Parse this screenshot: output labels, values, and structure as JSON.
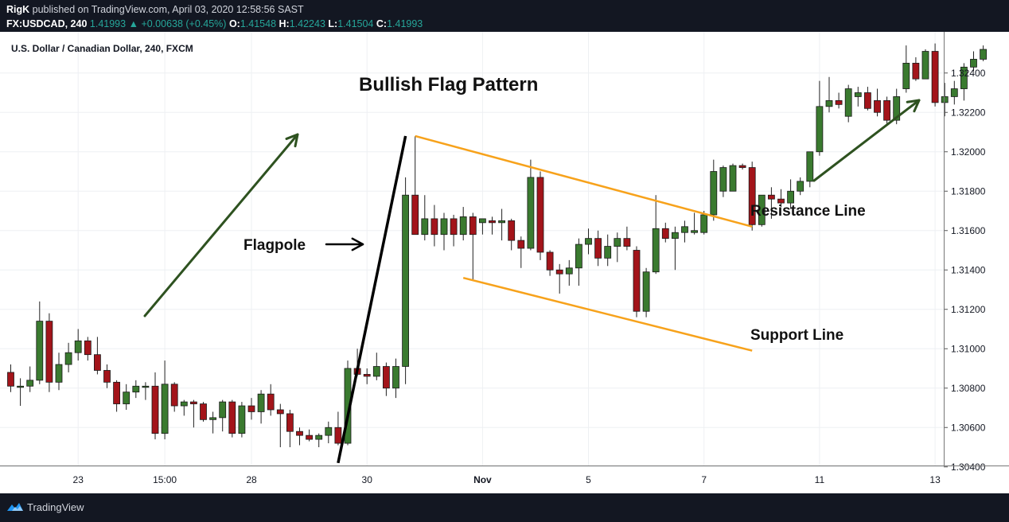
{
  "header": {
    "publisher": "RigK",
    "published_text": "published on TradingView.com, April 03, 2020 12:58:56 SAST",
    "symbol": "FX:USDCAD, 240",
    "last": "1.41993",
    "change": "+0.00638 (+0.45%)",
    "open_label": "O:",
    "open": "1.41548",
    "high_label": "H:",
    "high": "1.42243",
    "low_label": "L:",
    "low": "1.41504",
    "close_label": "C:",
    "close": "1.41993"
  },
  "footer": {
    "brand": "TradingView"
  },
  "chart_data": {
    "type": "candlestick",
    "symbol_label": "U.S. Dollar / Canadian Dollar, 240, FXCM",
    "ylim": [
      1.303,
      1.325
    ],
    "y_ticks": [
      "1.32400",
      "1.32200",
      "1.32000",
      "1.31800",
      "1.31600",
      "1.31400",
      "1.31200",
      "1.31000",
      "1.30800",
      "1.30600",
      "1.30400"
    ],
    "y_tick_values": [
      1.324,
      1.322,
      1.32,
      1.318,
      1.316,
      1.314,
      1.312,
      1.31,
      1.308,
      1.306,
      1.304
    ],
    "x_ticks": [
      "23",
      "15:00",
      "28",
      "30",
      "Nov",
      "5",
      "7",
      "11",
      "13"
    ],
    "x_tick_index": [
      7,
      16,
      25,
      37,
      49,
      60,
      72,
      84,
      96
    ],
    "grid": true,
    "colors": {
      "up": "#3a7a2f",
      "down": "#a3141a",
      "trend_arrow": "#2e5220",
      "flag_lines": "#f7a21b",
      "flagpole": "#000000"
    },
    "candles": [
      {
        "o": 1.3088,
        "h": 1.3092,
        "l": 1.3078,
        "c": 1.3081
      },
      {
        "o": 1.3081,
        "h": 1.3085,
        "l": 1.3071,
        "c": 1.3081
      },
      {
        "o": 1.3081,
        "h": 1.3091,
        "l": 1.3078,
        "c": 1.3084
      },
      {
        "o": 1.3084,
        "h": 1.3124,
        "l": 1.3082,
        "c": 1.3114
      },
      {
        "o": 1.3114,
        "h": 1.3118,
        "l": 1.3078,
        "c": 1.3083
      },
      {
        "o": 1.3083,
        "h": 1.3098,
        "l": 1.3079,
        "c": 1.3092
      },
      {
        "o": 1.3092,
        "h": 1.3103,
        "l": 1.3088,
        "c": 1.3098
      },
      {
        "o": 1.3098,
        "h": 1.311,
        "l": 1.3094,
        "c": 1.3104
      },
      {
        "o": 1.3104,
        "h": 1.3106,
        "l": 1.3094,
        "c": 1.3097
      },
      {
        "o": 1.3097,
        "h": 1.3106,
        "l": 1.3087,
        "c": 1.3089
      },
      {
        "o": 1.3089,
        "h": 1.3092,
        "l": 1.308,
        "c": 1.3083
      },
      {
        "o": 1.3083,
        "h": 1.3084,
        "l": 1.3068,
        "c": 1.3072
      },
      {
        "o": 1.3072,
        "h": 1.3082,
        "l": 1.3069,
        "c": 1.3078
      },
      {
        "o": 1.3078,
        "h": 1.3084,
        "l": 1.3075,
        "c": 1.3081
      },
      {
        "o": 1.3081,
        "h": 1.3083,
        "l": 1.3074,
        "c": 1.3081
      },
      {
        "o": 1.3081,
        "h": 1.3088,
        "l": 1.3054,
        "c": 1.3057
      },
      {
        "o": 1.3057,
        "h": 1.3094,
        "l": 1.3054,
        "c": 1.3082
      },
      {
        "o": 1.3082,
        "h": 1.3083,
        "l": 1.3068,
        "c": 1.3071
      },
      {
        "o": 1.3071,
        "h": 1.3074,
        "l": 1.3066,
        "c": 1.3073
      },
      {
        "o": 1.3073,
        "h": 1.3074,
        "l": 1.306,
        "c": 1.3072
      },
      {
        "o": 1.3072,
        "h": 1.3073,
        "l": 1.3063,
        "c": 1.3064
      },
      {
        "o": 1.3064,
        "h": 1.3068,
        "l": 1.3057,
        "c": 1.3065
      },
      {
        "o": 1.3065,
        "h": 1.3074,
        "l": 1.3058,
        "c": 1.3073
      },
      {
        "o": 1.3073,
        "h": 1.3074,
        "l": 1.3055,
        "c": 1.3057
      },
      {
        "o": 1.3057,
        "h": 1.3073,
        "l": 1.3055,
        "c": 1.3071
      },
      {
        "o": 1.3071,
        "h": 1.3075,
        "l": 1.3064,
        "c": 1.3068
      },
      {
        "o": 1.3068,
        "h": 1.3079,
        "l": 1.3062,
        "c": 1.3077
      },
      {
        "o": 1.3077,
        "h": 1.3082,
        "l": 1.3066,
        "c": 1.3069
      },
      {
        "o": 1.3069,
        "h": 1.3072,
        "l": 1.305,
        "c": 1.3067
      },
      {
        "o": 1.3067,
        "h": 1.3069,
        "l": 1.305,
        "c": 1.3058
      },
      {
        "o": 1.3058,
        "h": 1.306,
        "l": 1.3051,
        "c": 1.3056
      },
      {
        "o": 1.3056,
        "h": 1.3059,
        "l": 1.3053,
        "c": 1.3054
      },
      {
        "o": 1.3054,
        "h": 1.3057,
        "l": 1.305,
        "c": 1.3056
      },
      {
        "o": 1.3056,
        "h": 1.3063,
        "l": 1.3052,
        "c": 1.306
      },
      {
        "o": 1.306,
        "h": 1.3068,
        "l": 1.3051,
        "c": 1.3052
      },
      {
        "o": 1.3052,
        "h": 1.3094,
        "l": 1.3051,
        "c": 1.309
      },
      {
        "o": 1.309,
        "h": 1.31,
        "l": 1.3086,
        "c": 1.3087
      },
      {
        "o": 1.3087,
        "h": 1.309,
        "l": 1.3082,
        "c": 1.3086
      },
      {
        "o": 1.3086,
        "h": 1.3098,
        "l": 1.3084,
        "c": 1.3091
      },
      {
        "o": 1.3091,
        "h": 1.3093,
        "l": 1.3076,
        "c": 1.308
      },
      {
        "o": 1.308,
        "h": 1.3095,
        "l": 1.3075,
        "c": 1.3091
      },
      {
        "o": 1.3091,
        "h": 1.3187,
        "l": 1.3082,
        "c": 1.3178
      },
      {
        "o": 1.3178,
        "h": 1.3208,
        "l": 1.3158,
        "c": 1.3158
      },
      {
        "o": 1.3158,
        "h": 1.3178,
        "l": 1.3155,
        "c": 1.3166
      },
      {
        "o": 1.3166,
        "h": 1.3173,
        "l": 1.3152,
        "c": 1.3158
      },
      {
        "o": 1.3158,
        "h": 1.3169,
        "l": 1.315,
        "c": 1.3166
      },
      {
        "o": 1.3166,
        "h": 1.3168,
        "l": 1.3152,
        "c": 1.3158
      },
      {
        "o": 1.3158,
        "h": 1.3172,
        "l": 1.3155,
        "c": 1.3167
      },
      {
        "o": 1.3167,
        "h": 1.3169,
        "l": 1.3135,
        "c": 1.3158
      },
      {
        "o": 1.3164,
        "h": 1.3166,
        "l": 1.3158,
        "c": 1.3166
      },
      {
        "o": 1.3165,
        "h": 1.3167,
        "l": 1.3158,
        "c": 1.3164
      },
      {
        "o": 1.3164,
        "h": 1.3171,
        "l": 1.3155,
        "c": 1.3165
      },
      {
        "o": 1.3165,
        "h": 1.3166,
        "l": 1.315,
        "c": 1.3155
      },
      {
        "o": 1.3155,
        "h": 1.3157,
        "l": 1.3141,
        "c": 1.3151
      },
      {
        "o": 1.3151,
        "h": 1.3196,
        "l": 1.315,
        "c": 1.3187
      },
      {
        "o": 1.3187,
        "h": 1.319,
        "l": 1.3145,
        "c": 1.3149
      },
      {
        "o": 1.3149,
        "h": 1.315,
        "l": 1.3137,
        "c": 1.314
      },
      {
        "o": 1.314,
        "h": 1.3143,
        "l": 1.3128,
        "c": 1.3138
      },
      {
        "o": 1.3138,
        "h": 1.3145,
        "l": 1.3132,
        "c": 1.3141
      },
      {
        "o": 1.3141,
        "h": 1.3156,
        "l": 1.3132,
        "c": 1.3153
      },
      {
        "o": 1.3153,
        "h": 1.3161,
        "l": 1.3148,
        "c": 1.3156
      },
      {
        "o": 1.3156,
        "h": 1.316,
        "l": 1.3142,
        "c": 1.3146
      },
      {
        "o": 1.3146,
        "h": 1.3158,
        "l": 1.3142,
        "c": 1.3152
      },
      {
        "o": 1.3152,
        "h": 1.3159,
        "l": 1.3144,
        "c": 1.3156
      },
      {
        "o": 1.3156,
        "h": 1.3162,
        "l": 1.315,
        "c": 1.3152
      },
      {
        "o": 1.315,
        "h": 1.3152,
        "l": 1.3116,
        "c": 1.3119
      },
      {
        "o": 1.3119,
        "h": 1.3141,
        "l": 1.3116,
        "c": 1.3139
      },
      {
        "o": 1.3139,
        "h": 1.3178,
        "l": 1.3138,
        "c": 1.3161
      },
      {
        "o": 1.3161,
        "h": 1.3164,
        "l": 1.3154,
        "c": 1.3156
      },
      {
        "o": 1.3156,
        "h": 1.3162,
        "l": 1.314,
        "c": 1.3159
      },
      {
        "o": 1.3159,
        "h": 1.3165,
        "l": 1.3154,
        "c": 1.3162
      },
      {
        "o": 1.3159,
        "h": 1.3169,
        "l": 1.3158,
        "c": 1.316
      },
      {
        "o": 1.3159,
        "h": 1.317,
        "l": 1.3158,
        "c": 1.3168
      },
      {
        "o": 1.3168,
        "h": 1.3196,
        "l": 1.3165,
        "c": 1.319
      },
      {
        "o": 1.318,
        "h": 1.3193,
        "l": 1.3177,
        "c": 1.3192
      },
      {
        "o": 1.318,
        "h": 1.3194,
        "l": 1.318,
        "c": 1.3193
      },
      {
        "o": 1.3193,
        "h": 1.3194,
        "l": 1.3191,
        "c": 1.3192
      },
      {
        "o": 1.3192,
        "h": 1.3195,
        "l": 1.316,
        "c": 1.3163
      },
      {
        "o": 1.3163,
        "h": 1.3178,
        "l": 1.3162,
        "c": 1.3178
      },
      {
        "o": 1.3178,
        "h": 1.3182,
        "l": 1.3166,
        "c": 1.3176
      },
      {
        "o": 1.3176,
        "h": 1.3181,
        "l": 1.3172,
        "c": 1.3174
      },
      {
        "o": 1.3174,
        "h": 1.3186,
        "l": 1.3171,
        "c": 1.318
      },
      {
        "o": 1.318,
        "h": 1.3187,
        "l": 1.3178,
        "c": 1.3185
      },
      {
        "o": 1.3185,
        "h": 1.32,
        "l": 1.3182,
        "c": 1.32
      },
      {
        "o": 1.32,
        "h": 1.3236,
        "l": 1.3198,
        "c": 1.3223
      },
      {
        "o": 1.3223,
        "h": 1.3238,
        "l": 1.322,
        "c": 1.3226
      },
      {
        "o": 1.3226,
        "h": 1.323,
        "l": 1.3222,
        "c": 1.3224
      },
      {
        "o": 1.3218,
        "h": 1.3234,
        "l": 1.3215,
        "c": 1.3232
      },
      {
        "o": 1.3228,
        "h": 1.3233,
        "l": 1.3223,
        "c": 1.323
      },
      {
        "o": 1.323,
        "h": 1.3233,
        "l": 1.3221,
        "c": 1.3222
      },
      {
        "o": 1.3226,
        "h": 1.3232,
        "l": 1.3218,
        "c": 1.322
      },
      {
        "o": 1.3226,
        "h": 1.3228,
        "l": 1.3214,
        "c": 1.3216
      },
      {
        "o": 1.3216,
        "h": 1.3232,
        "l": 1.3214,
        "c": 1.3228
      },
      {
        "o": 1.3232,
        "h": 1.3254,
        "l": 1.323,
        "c": 1.3245
      },
      {
        "o": 1.3245,
        "h": 1.3248,
        "l": 1.3236,
        "c": 1.3237
      },
      {
        "o": 1.3237,
        "h": 1.3252,
        "l": 1.3237,
        "c": 1.3251
      },
      {
        "o": 1.3251,
        "h": 1.3255,
        "l": 1.3223,
        "c": 1.3225
      },
      {
        "o": 1.3225,
        "h": 1.3235,
        "l": 1.3218,
        "c": 1.3228
      },
      {
        "o": 1.3228,
        "h": 1.3236,
        "l": 1.3224,
        "c": 1.3232
      },
      {
        "o": 1.3232,
        "h": 1.3245,
        "l": 1.3226,
        "c": 1.3243
      },
      {
        "o": 1.3243,
        "h": 1.3251,
        "l": 1.3241,
        "c": 1.3247
      },
      {
        "o": 1.3247,
        "h": 1.3254,
        "l": 1.3246,
        "c": 1.3252
      }
    ],
    "annotations": {
      "title": "Bullish Flag Pattern",
      "flagpole": "Flagpole",
      "resistance": "Resistance Line",
      "support": "Support Line"
    },
    "flagpole": {
      "from": {
        "i": 34,
        "p": 1.3042
      },
      "to": {
        "i": 41,
        "p": 1.3208
      }
    },
    "resistance_line": {
      "from": {
        "i": 42,
        "p": 1.3208
      },
      "to": {
        "i": 77,
        "p": 1.3162
      }
    },
    "support_line": {
      "from": {
        "i": 47,
        "p": 1.3136
      },
      "to": {
        "i": 77,
        "p": 1.3099
      }
    }
  }
}
